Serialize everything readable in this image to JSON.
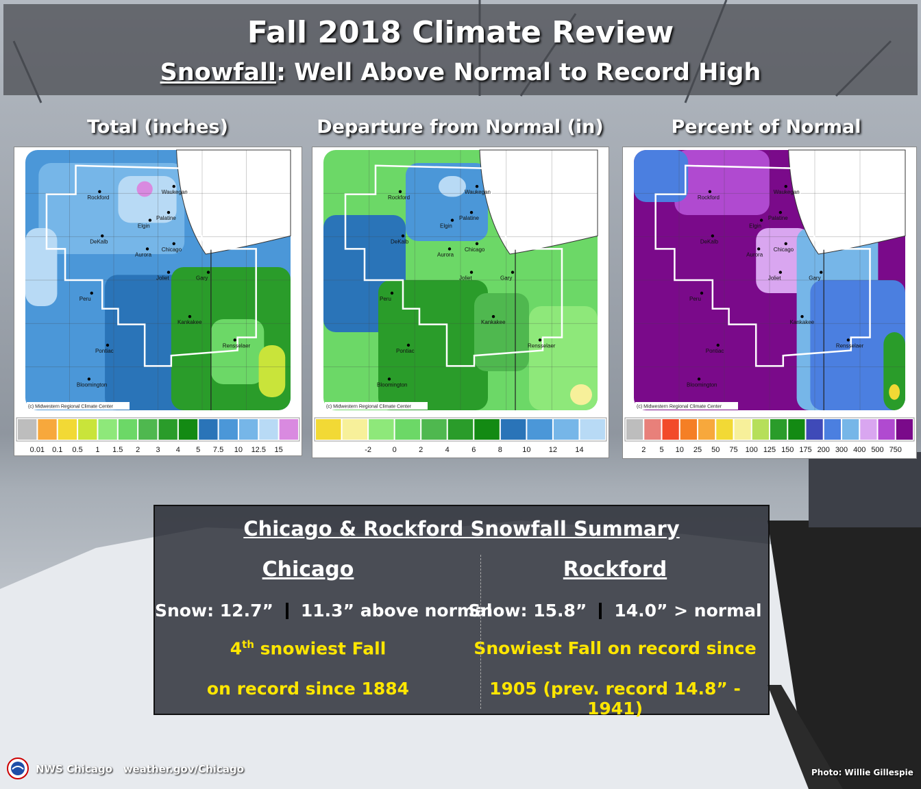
{
  "header": {
    "title": "Fall 2018 Climate Review",
    "subtitle_underlined": "Snowfall",
    "subtitle_rest": ": Well Above Normal to Record High"
  },
  "panels": [
    {
      "title": "Total (inches)",
      "credit": "(c) Midwestern Regional Climate Center",
      "legend_colors": [
        "#bdbdbd",
        "#f7a83c",
        "#f2d935",
        "#c9e43a",
        "#8ee87a",
        "#6cd867",
        "#4fb84f",
        "#2a9c2a",
        "#138a13",
        "#2a74b8",
        "#4b97d8",
        "#76b6e8",
        "#b8daf5",
        "#d98ae0"
      ],
      "legend_labels": [
        "0.01",
        "0.1",
        "0.5",
        "1",
        "1.5",
        "2",
        "3",
        "4",
        "5",
        "7.5",
        "10",
        "12.5",
        "15"
      ],
      "cities": [
        {
          "name": "Rockford"
        },
        {
          "name": "Waukegan"
        },
        {
          "name": "Palatine"
        },
        {
          "name": "Elgin"
        },
        {
          "name": "DeKalb"
        },
        {
          "name": "Aurora"
        },
        {
          "name": "Chicago"
        },
        {
          "name": "Joliet"
        },
        {
          "name": "Gary"
        },
        {
          "name": "Peru"
        },
        {
          "name": "Kankakee"
        },
        {
          "name": "Rensselaer"
        },
        {
          "name": "Pontiac"
        },
        {
          "name": "Bloomington"
        }
      ]
    },
    {
      "title": "Departure from Normal (in)",
      "credit": "(c) Midwestern Regional Climate Center",
      "legend_colors": [
        "#f2d935",
        "#f7f09a",
        "#8ee87a",
        "#6cd867",
        "#4fb84f",
        "#2a9c2a",
        "#138a13",
        "#2a74b8",
        "#4b97d8",
        "#76b6e8",
        "#b8daf5"
      ],
      "legend_labels": [
        "-2",
        "0",
        "2",
        "4",
        "6",
        "8",
        "10",
        "12",
        "14"
      ],
      "cities": [
        {
          "name": "Rockford"
        },
        {
          "name": "Waukegan"
        },
        {
          "name": "Palatine"
        },
        {
          "name": "Elgin"
        },
        {
          "name": "DeKalb"
        },
        {
          "name": "Aurora"
        },
        {
          "name": "Chicago"
        },
        {
          "name": "Joliet"
        },
        {
          "name": "Gary"
        },
        {
          "name": "Peru"
        },
        {
          "name": "Kankakee"
        },
        {
          "name": "Rensselaer"
        },
        {
          "name": "Pontiac"
        },
        {
          "name": "Bloomington"
        }
      ]
    },
    {
      "title": "Percent of Normal",
      "credit": "(c) Midwestern Regional Climate Center",
      "legend_colors": [
        "#bdbdbd",
        "#e8807a",
        "#f24a2a",
        "#f57f25",
        "#f7a83c",
        "#f2d935",
        "#f7f09a",
        "#b6df5a",
        "#2a9c2a",
        "#138a13",
        "#3f4ab8",
        "#4b7fe0",
        "#76b6e8",
        "#d9a6f0",
        "#b04ad0",
        "#7a0a8a"
      ],
      "legend_labels": [
        "2",
        "5",
        "10",
        "25",
        "50",
        "75",
        "100",
        "125",
        "150",
        "175",
        "200",
        "300",
        "400",
        "500",
        "750"
      ],
      "cities": [
        {
          "name": "Rockford"
        },
        {
          "name": "Waukegan"
        },
        {
          "name": "Palatine"
        },
        {
          "name": "Elgin"
        },
        {
          "name": "DeKalb"
        },
        {
          "name": "Aurora"
        },
        {
          "name": "Chicago"
        },
        {
          "name": "Joliet"
        },
        {
          "name": "Gary"
        },
        {
          "name": "Peru"
        },
        {
          "name": "Kankakee"
        },
        {
          "name": "Rensselaer"
        },
        {
          "name": "Pontiac"
        },
        {
          "name": "Bloomington"
        }
      ]
    }
  ],
  "summary": {
    "title": "Chicago & Rockford Snowfall Summary",
    "chicago": {
      "city": "Chicago",
      "snow": "Snow:  12.7”",
      "departure": "11.3” above normal",
      "rank_num": "4",
      "rank_sup": "th",
      "rank_rest": " snowiest Fall",
      "line2": "on record since 1884"
    },
    "rockford": {
      "city": "Rockford",
      "snow": "Snow: 15.8”",
      "departure": "14.0” > normal",
      "line1": "Snowiest Fall on record since",
      "line2": "1905 (prev. record 14.8” - 1941)"
    }
  },
  "footer": {
    "org": "NWS Chicago",
    "url": "weather.gov/Chicago",
    "photo_credit": "Photo: Willie Gillespie"
  }
}
